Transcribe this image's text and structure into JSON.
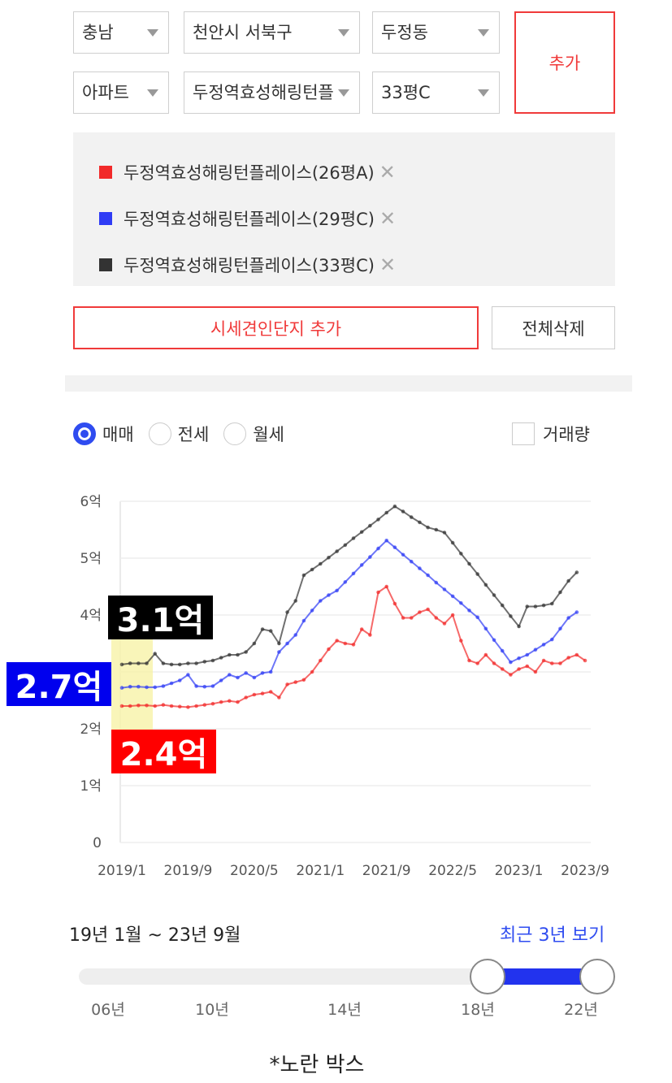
{
  "filters": {
    "row1": [
      "충남",
      "천안시 서북구",
      "두정동"
    ],
    "row2": [
      "아파트",
      "두정역효성해링턴플",
      "33평C"
    ],
    "add_button": "추가"
  },
  "buttons": {
    "add_competitor": "시세견인단지 추가",
    "delete_all": "전체삭제"
  },
  "tabs": [
    "매매",
    "전세",
    "월세"
  ],
  "volume": "거래량",
  "chart_data": {
    "type": "line",
    "categories": [
      "2019/1",
      null,
      null,
      null,
      null,
      null,
      null,
      null,
      "2019/9",
      null,
      null,
      null,
      null,
      null,
      null,
      null,
      "2020/5",
      null,
      null,
      null,
      null,
      null,
      null,
      null,
      "2021/1",
      null,
      null,
      null,
      null,
      null,
      null,
      null,
      "2021/9",
      null,
      null,
      null,
      null,
      null,
      null,
      null,
      "2022/5",
      null,
      null,
      null,
      null,
      null,
      null,
      null,
      "2023/1",
      null,
      null,
      null,
      null,
      null,
      null,
      null,
      "2023/9"
    ],
    "ylim": [
      0,
      6
    ],
    "yticks": [
      0,
      {
        "value": 1,
        "label": "1억"
      },
      {
        "value": 2,
        "label": "2억"
      },
      {
        "value": 3,
        "label": "3억"
      },
      {
        "value": 4,
        "label": "4억"
      },
      {
        "value": 5,
        "label": "5억"
      },
      {
        "value": 6,
        "label": "6억"
      }
    ],
    "grid": true,
    "series": [
      {
        "name": "두정역효성해링턴플레이스(26평A)",
        "color": "#f22a2a",
        "values": [
          2.4,
          2.4,
          2.41,
          2.41,
          2.4,
          2.42,
          2.4,
          2.39,
          2.38,
          2.4,
          2.42,
          2.44,
          2.47,
          2.49,
          2.47,
          2.55,
          2.6,
          2.62,
          2.65,
          2.55,
          2.78,
          2.82,
          2.86,
          3.0,
          3.2,
          3.4,
          3.55,
          3.5,
          3.48,
          3.75,
          3.65,
          4.4,
          4.5,
          4.2,
          3.95,
          3.95,
          4.05,
          4.1,
          3.95,
          3.85,
          4.0,
          3.55,
          3.2,
          3.15,
          3.3,
          3.15,
          3.05,
          2.95,
          3.05,
          3.1,
          3.0,
          3.2,
          3.15,
          3.15,
          3.25,
          3.3,
          3.2
        ]
      },
      {
        "name": "두정역효성해링턴플레이스(29평C)",
        "color": "#2f3cf5",
        "values": [
          2.72,
          2.74,
          2.74,
          2.73,
          2.73,
          2.75,
          2.8,
          2.85,
          2.95,
          2.75,
          2.74,
          2.75,
          2.85,
          2.95,
          2.9,
          2.98,
          2.9,
          2.98,
          3.0,
          3.35,
          3.5,
          3.65,
          3.9,
          4.08,
          4.25,
          4.35,
          4.43,
          4.58,
          4.73,
          4.88,
          5.02,
          5.17,
          5.31,
          5.19,
          5.06,
          4.94,
          4.82,
          4.7,
          4.57,
          4.45,
          4.33,
          4.21,
          4.08,
          3.96,
          3.76,
          3.56,
          3.37,
          3.17,
          3.24,
          3.3,
          3.39,
          3.48,
          3.57,
          3.76,
          3.95,
          4.05,
          null
        ]
      },
      {
        "name": "두정역효성해링턴플레이스(33평C)",
        "color": "#333333",
        "values": [
          3.13,
          3.15,
          3.15,
          3.15,
          3.32,
          3.15,
          3.13,
          3.13,
          3.15,
          3.15,
          3.18,
          3.2,
          3.25,
          3.3,
          3.3,
          3.35,
          3.5,
          3.75,
          3.72,
          3.5,
          4.05,
          4.25,
          4.7,
          4.8,
          4.9,
          5.01,
          5.12,
          5.23,
          5.35,
          5.46,
          5.57,
          5.68,
          5.8,
          5.91,
          5.82,
          5.72,
          5.63,
          5.54,
          5.5,
          5.45,
          5.27,
          5.08,
          4.9,
          4.72,
          4.53,
          4.35,
          4.17,
          3.98,
          3.8,
          4.15,
          4.15,
          4.17,
          4.2,
          4.4,
          4.6,
          4.75,
          null
        ]
      }
    ],
    "annotations": [
      {
        "text": "3.1억",
        "color": "#000000"
      },
      {
        "text": "2.7억",
        "color": "#0000ee"
      },
      {
        "text": "2.4억",
        "color": "#ff0000"
      }
    ]
  },
  "period": "19년 1월 ~ 23년 9월",
  "recent_button": "최근 3년 보기",
  "slider_ticks": [
    "06년",
    "10년",
    "14년",
    "18년",
    "22년"
  ],
  "caption": "*노란 박스"
}
